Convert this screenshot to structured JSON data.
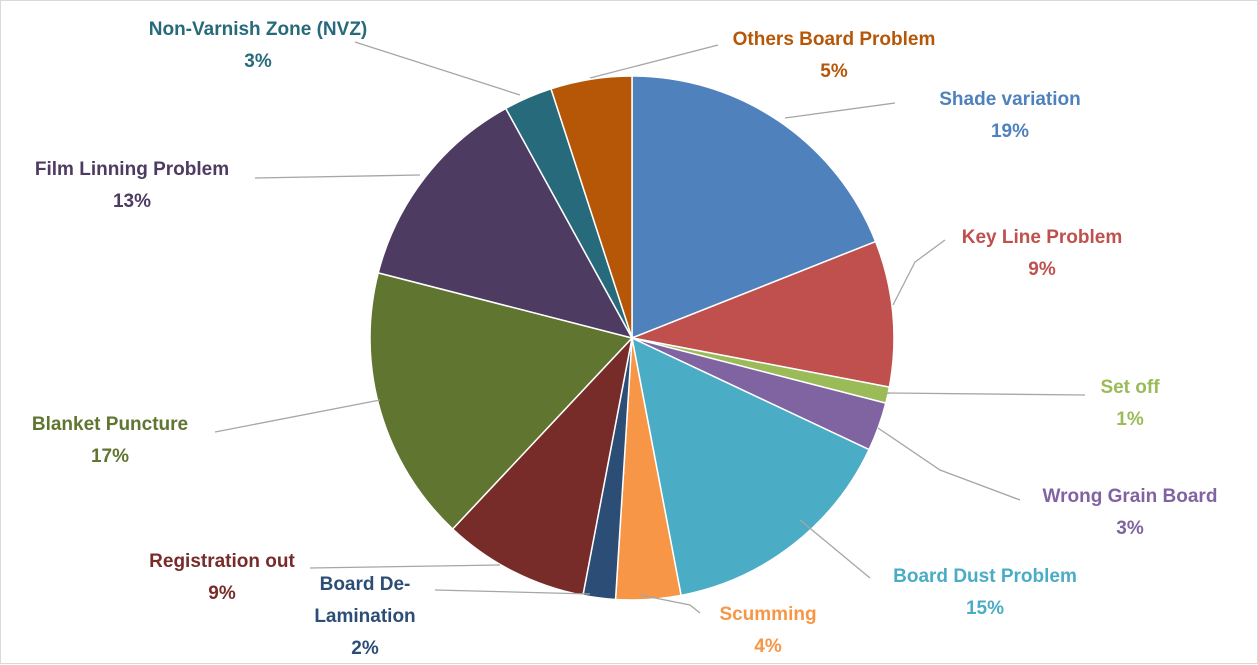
{
  "chart_data": {
    "type": "pie",
    "categories": [
      "Shade variation",
      "Key Line Problem",
      "Set off",
      "Wrong Grain Board",
      "Board Dust Problem",
      "Scumming",
      "Board De-Lamination",
      "Registration out",
      "Blanket Puncture",
      "Film Linning Problem",
      "Non-Varnish Zone (NVZ)",
      "Others Board Problem"
    ],
    "values": [
      19,
      9,
      1,
      3,
      15,
      4,
      2,
      9,
      17,
      13,
      3,
      5
    ],
    "value_labels": [
      "19%",
      "9%",
      "1%",
      "3%",
      "15%",
      "4%",
      "2%",
      "9%",
      "17%",
      "13%",
      "3%",
      "5%"
    ],
    "colors": [
      "#4f81bd",
      "#c0504d",
      "#9bbb59",
      "#8064a2",
      "#4bacc6",
      "#f79646",
      "#2c4d75",
      "#772c2a",
      "#5f7530",
      "#4d3b62",
      "#276a7c",
      "#b65708"
    ]
  }
}
